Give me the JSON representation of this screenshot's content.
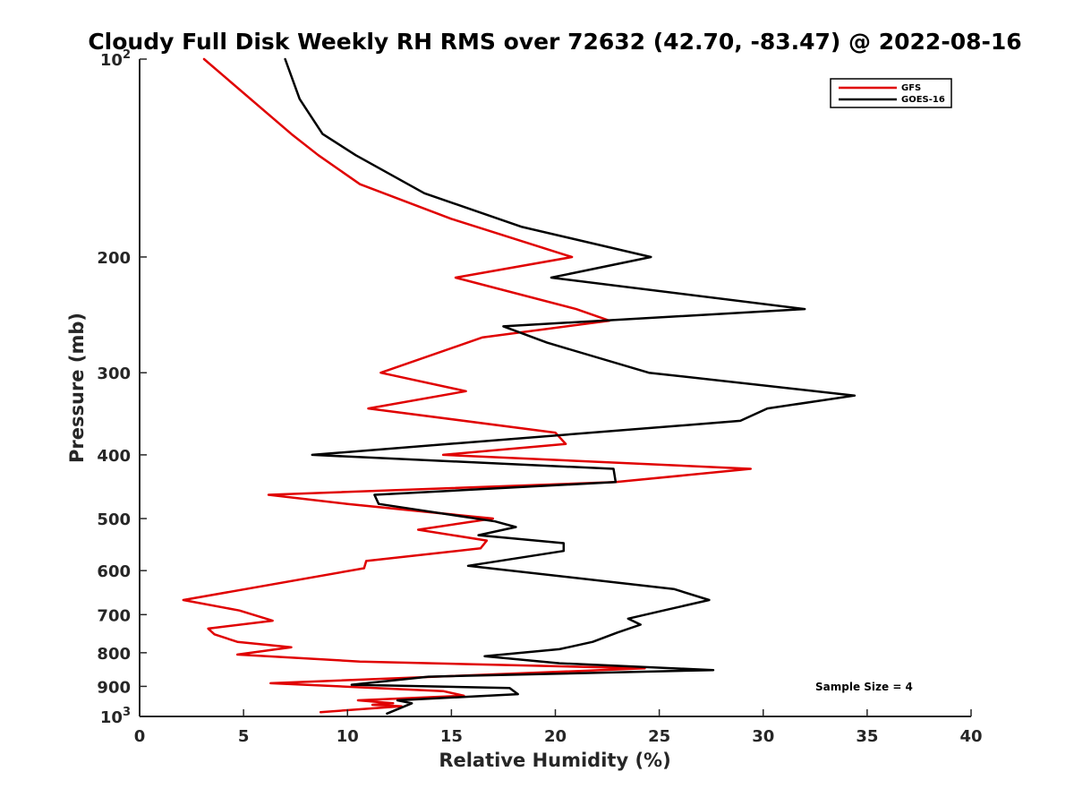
{
  "chart_data": {
    "type": "line",
    "title": "Cloudy Full Disk Weekly RH RMS over 72632 (42.70, -83.47) @ 2022-08-16",
    "xlabel": "Relative Humidity (%)",
    "ylabel": "Pressure (mb)",
    "xlim": [
      0,
      40
    ],
    "ylim": [
      100,
      1000
    ],
    "yscale": "log",
    "y_reversed": true,
    "grid": false,
    "xticks": [
      0,
      5,
      10,
      15,
      20,
      25,
      30,
      35,
      40
    ],
    "xtick_labels": [
      "0",
      "5",
      "10",
      "15",
      "20",
      "25",
      "30",
      "35",
      "40"
    ],
    "yticks": [
      100,
      200,
      300,
      400,
      500,
      600,
      700,
      800,
      900,
      1000
    ],
    "ytick_labels": [
      {
        "base": "10",
        "sup": "2"
      },
      {
        "base": "200",
        "sup": ""
      },
      {
        "base": "300",
        "sup": ""
      },
      {
        "base": "400",
        "sup": ""
      },
      {
        "base": "500",
        "sup": ""
      },
      {
        "base": "600",
        "sup": ""
      },
      {
        "base": "700",
        "sup": ""
      },
      {
        "base": "800",
        "sup": ""
      },
      {
        "base": "900",
        "sup": ""
      },
      {
        "base": "10",
        "sup": "3"
      }
    ],
    "legend_position": "top-right",
    "annotation": "Sample Size = 4",
    "series": [
      {
        "name": "GFS",
        "color": "#e00000",
        "points": [
          [
            3.1,
            100
          ],
          [
            7.3,
            130
          ],
          [
            8.6,
            140
          ],
          [
            10.6,
            155
          ],
          [
            15.0,
            175
          ],
          [
            20.8,
            200
          ],
          [
            15.2,
            215
          ],
          [
            21.0,
            240
          ],
          [
            22.6,
            250
          ],
          [
            16.5,
            265
          ],
          [
            11.6,
            300
          ],
          [
            15.7,
            320
          ],
          [
            11.0,
            340
          ],
          [
            20.0,
            370
          ],
          [
            20.5,
            385
          ],
          [
            14.6,
            400
          ],
          [
            29.4,
            420
          ],
          [
            22.9,
            440
          ],
          [
            6.2,
            460
          ],
          [
            10.0,
            475
          ],
          [
            17.0,
            500
          ],
          [
            13.4,
            520
          ],
          [
            16.7,
            540
          ],
          [
            16.4,
            555
          ],
          [
            10.9,
            580
          ],
          [
            10.8,
            595
          ],
          [
            2.1,
            665
          ],
          [
            4.8,
            690
          ],
          [
            6.4,
            715
          ],
          [
            3.3,
            735
          ],
          [
            3.6,
            750
          ],
          [
            4.7,
            770
          ],
          [
            7.3,
            785
          ],
          [
            4.7,
            805
          ],
          [
            10.6,
            825
          ],
          [
            24.3,
            845
          ],
          [
            6.3,
            890
          ],
          [
            14.6,
            915
          ],
          [
            15.6,
            930
          ],
          [
            10.5,
            945
          ],
          [
            12.2,
            955
          ],
          [
            11.2,
            960
          ],
          [
            12.6,
            965
          ],
          [
            8.7,
            985
          ]
        ]
      },
      {
        "name": "GOES-16",
        "color": "#000000",
        "points": [
          [
            7.0,
            100
          ],
          [
            7.7,
            115
          ],
          [
            8.8,
            130
          ],
          [
            10.4,
            140
          ],
          [
            13.7,
            160
          ],
          [
            18.4,
            180
          ],
          [
            24.6,
            200
          ],
          [
            19.8,
            215
          ],
          [
            32.0,
            240
          ],
          [
            17.5,
            255
          ],
          [
            19.6,
            270
          ],
          [
            24.5,
            300
          ],
          [
            34.4,
            325
          ],
          [
            30.2,
            340
          ],
          [
            28.9,
            355
          ],
          [
            8.3,
            400
          ],
          [
            22.8,
            420
          ],
          [
            22.9,
            440
          ],
          [
            11.3,
            460
          ],
          [
            11.5,
            475
          ],
          [
            17.1,
            505
          ],
          [
            18.1,
            515
          ],
          [
            16.3,
            530
          ],
          [
            20.4,
            545
          ],
          [
            20.4,
            560
          ],
          [
            15.8,
            590
          ],
          [
            25.7,
            640
          ],
          [
            27.4,
            665
          ],
          [
            25.2,
            690
          ],
          [
            23.5,
            710
          ],
          [
            24.1,
            725
          ],
          [
            23.0,
            745
          ],
          [
            21.8,
            770
          ],
          [
            20.2,
            790
          ],
          [
            16.6,
            810
          ],
          [
            20.2,
            830
          ],
          [
            27.6,
            850
          ],
          [
            13.9,
            870
          ],
          [
            10.2,
            895
          ],
          [
            17.8,
            905
          ],
          [
            18.2,
            925
          ],
          [
            12.4,
            945
          ],
          [
            13.1,
            955
          ],
          [
            11.9,
            990
          ]
        ]
      }
    ]
  }
}
